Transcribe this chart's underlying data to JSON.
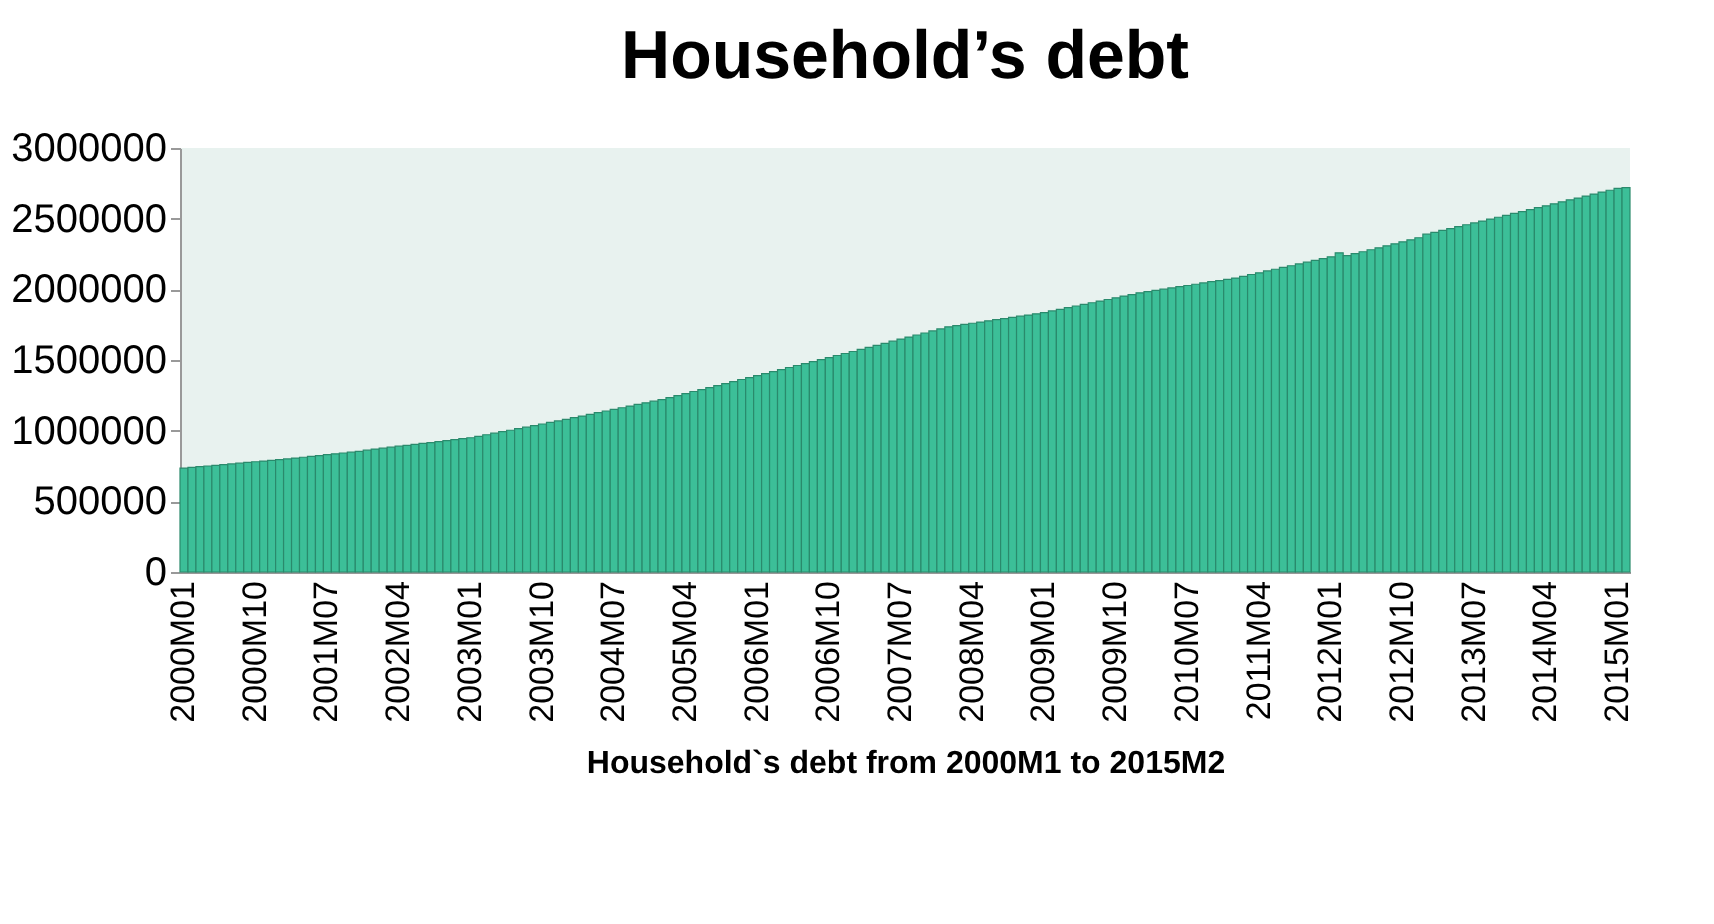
{
  "chart_data": {
    "type": "bar",
    "title": "Household’s debt",
    "xlabel": "Household`s debt from 2000M1 to 2015M2",
    "categories": [
      "2000M01",
      null,
      null,
      null,
      null,
      null,
      null,
      null,
      null,
      "2000M10",
      null,
      null,
      null,
      null,
      null,
      null,
      null,
      null,
      "2001M07",
      null,
      null,
      null,
      null,
      null,
      null,
      null,
      null,
      "2002M04",
      null,
      null,
      null,
      null,
      null,
      null,
      null,
      null,
      "2003M01",
      null,
      null,
      null,
      null,
      null,
      null,
      null,
      null,
      "2003M10",
      null,
      null,
      null,
      null,
      null,
      null,
      null,
      null,
      "2004M07",
      null,
      null,
      null,
      null,
      null,
      null,
      null,
      null,
      "2005M04",
      null,
      null,
      null,
      null,
      null,
      null,
      null,
      null,
      "2006M01",
      null,
      null,
      null,
      null,
      null,
      null,
      null,
      null,
      "2006M10",
      null,
      null,
      null,
      null,
      null,
      null,
      null,
      null,
      "2007M07",
      null,
      null,
      null,
      null,
      null,
      null,
      null,
      null,
      "2008M04",
      null,
      null,
      null,
      null,
      null,
      null,
      null,
      null,
      "2009M01",
      null,
      null,
      null,
      null,
      null,
      null,
      null,
      null,
      "2009M10",
      null,
      null,
      null,
      null,
      null,
      null,
      null,
      null,
      "2010M07",
      null,
      null,
      null,
      null,
      null,
      null,
      null,
      null,
      "2011M04",
      null,
      null,
      null,
      null,
      null,
      null,
      null,
      null,
      "2012M01",
      null,
      null,
      null,
      null,
      null,
      null,
      null,
      null,
      "2012M10",
      null,
      null,
      null,
      null,
      null,
      null,
      null,
      null,
      "2013M07",
      null,
      null,
      null,
      null,
      null,
      null,
      null,
      null,
      "2014M04",
      null,
      null,
      null,
      null,
      null,
      null,
      null,
      null,
      "2015M01",
      null
    ],
    "series": [
      {
        "color": "#3cbf98",
        "values": [
          735000,
          740000,
          745000,
          750000,
          755000,
          760000,
          765000,
          770000,
          775000,
          780000,
          785000,
          790000,
          795000,
          800000,
          806000,
          812000,
          818000,
          824000,
          830000,
          836000,
          842000,
          848000,
          854000,
          862000,
          870000,
          876000,
          883000,
          890000,
          896000,
          903000,
          910000,
          916000,
          923000,
          930000,
          936000,
          943000,
          950000,
          960000,
          971000,
          982000,
          993000,
          1003000,
          1014000,
          1025000,
          1036000,
          1047000,
          1058000,
          1069000,
          1080000,
          1092000,
          1103000,
          1115000,
          1127000,
          1139000,
          1150000,
          1162000,
          1174000,
          1186000,
          1197000,
          1209000,
          1220000,
          1234000,
          1248000,
          1262000,
          1277000,
          1291000,
          1305000,
          1319000,
          1333000,
          1347000,
          1362000,
          1376000,
          1390000,
          1404000,
          1418000,
          1432000,
          1447000,
          1461000,
          1475000,
          1489000,
          1503000,
          1517000,
          1532000,
          1546000,
          1560000,
          1575000,
          1589000,
          1604000,
          1618000,
          1633000,
          1648000,
          1662000,
          1677000,
          1691000,
          1706000,
          1720000,
          1735000,
          1743000,
          1752000,
          1760000,
          1768000,
          1777000,
          1785000,
          1793000,
          1802000,
          1810000,
          1818000,
          1827000,
          1835000,
          1847000,
          1858000,
          1870000,
          1882000,
          1893000,
          1905000,
          1917000,
          1928000,
          1940000,
          1952000,
          1963000,
          1975000,
          1984000,
          1992000,
          2001000,
          2010000,
          2019000,
          2027000,
          2036000,
          2045000,
          2054000,
          2062000,
          2071000,
          2080000,
          2092000,
          2105000,
          2117000,
          2130000,
          2142000,
          2155000,
          2167000,
          2180000,
          2192000,
          2205000,
          2217000,
          2230000,
          2258000,
          2238000,
          2252000,
          2266000,
          2280000,
          2294000,
          2308000,
          2322000,
          2336000,
          2350000,
          2365000,
          2390000,
          2403000,
          2417000,
          2430000,
          2443000,
          2457000,
          2470000,
          2483000,
          2497000,
          2510000,
          2523000,
          2537000,
          2550000,
          2564000,
          2578000,
          2591000,
          2605000,
          2619000,
          2633000,
          2646000,
          2660000,
          2674000,
          2688000,
          2701000,
          2715000,
          2720000
        ]
      }
    ],
    "ylim": [
      0,
      3000000
    ],
    "yticks": [
      0,
      500000,
      1000000,
      1500000,
      2000000,
      2500000,
      3000000
    ],
    "grid": false
  }
}
